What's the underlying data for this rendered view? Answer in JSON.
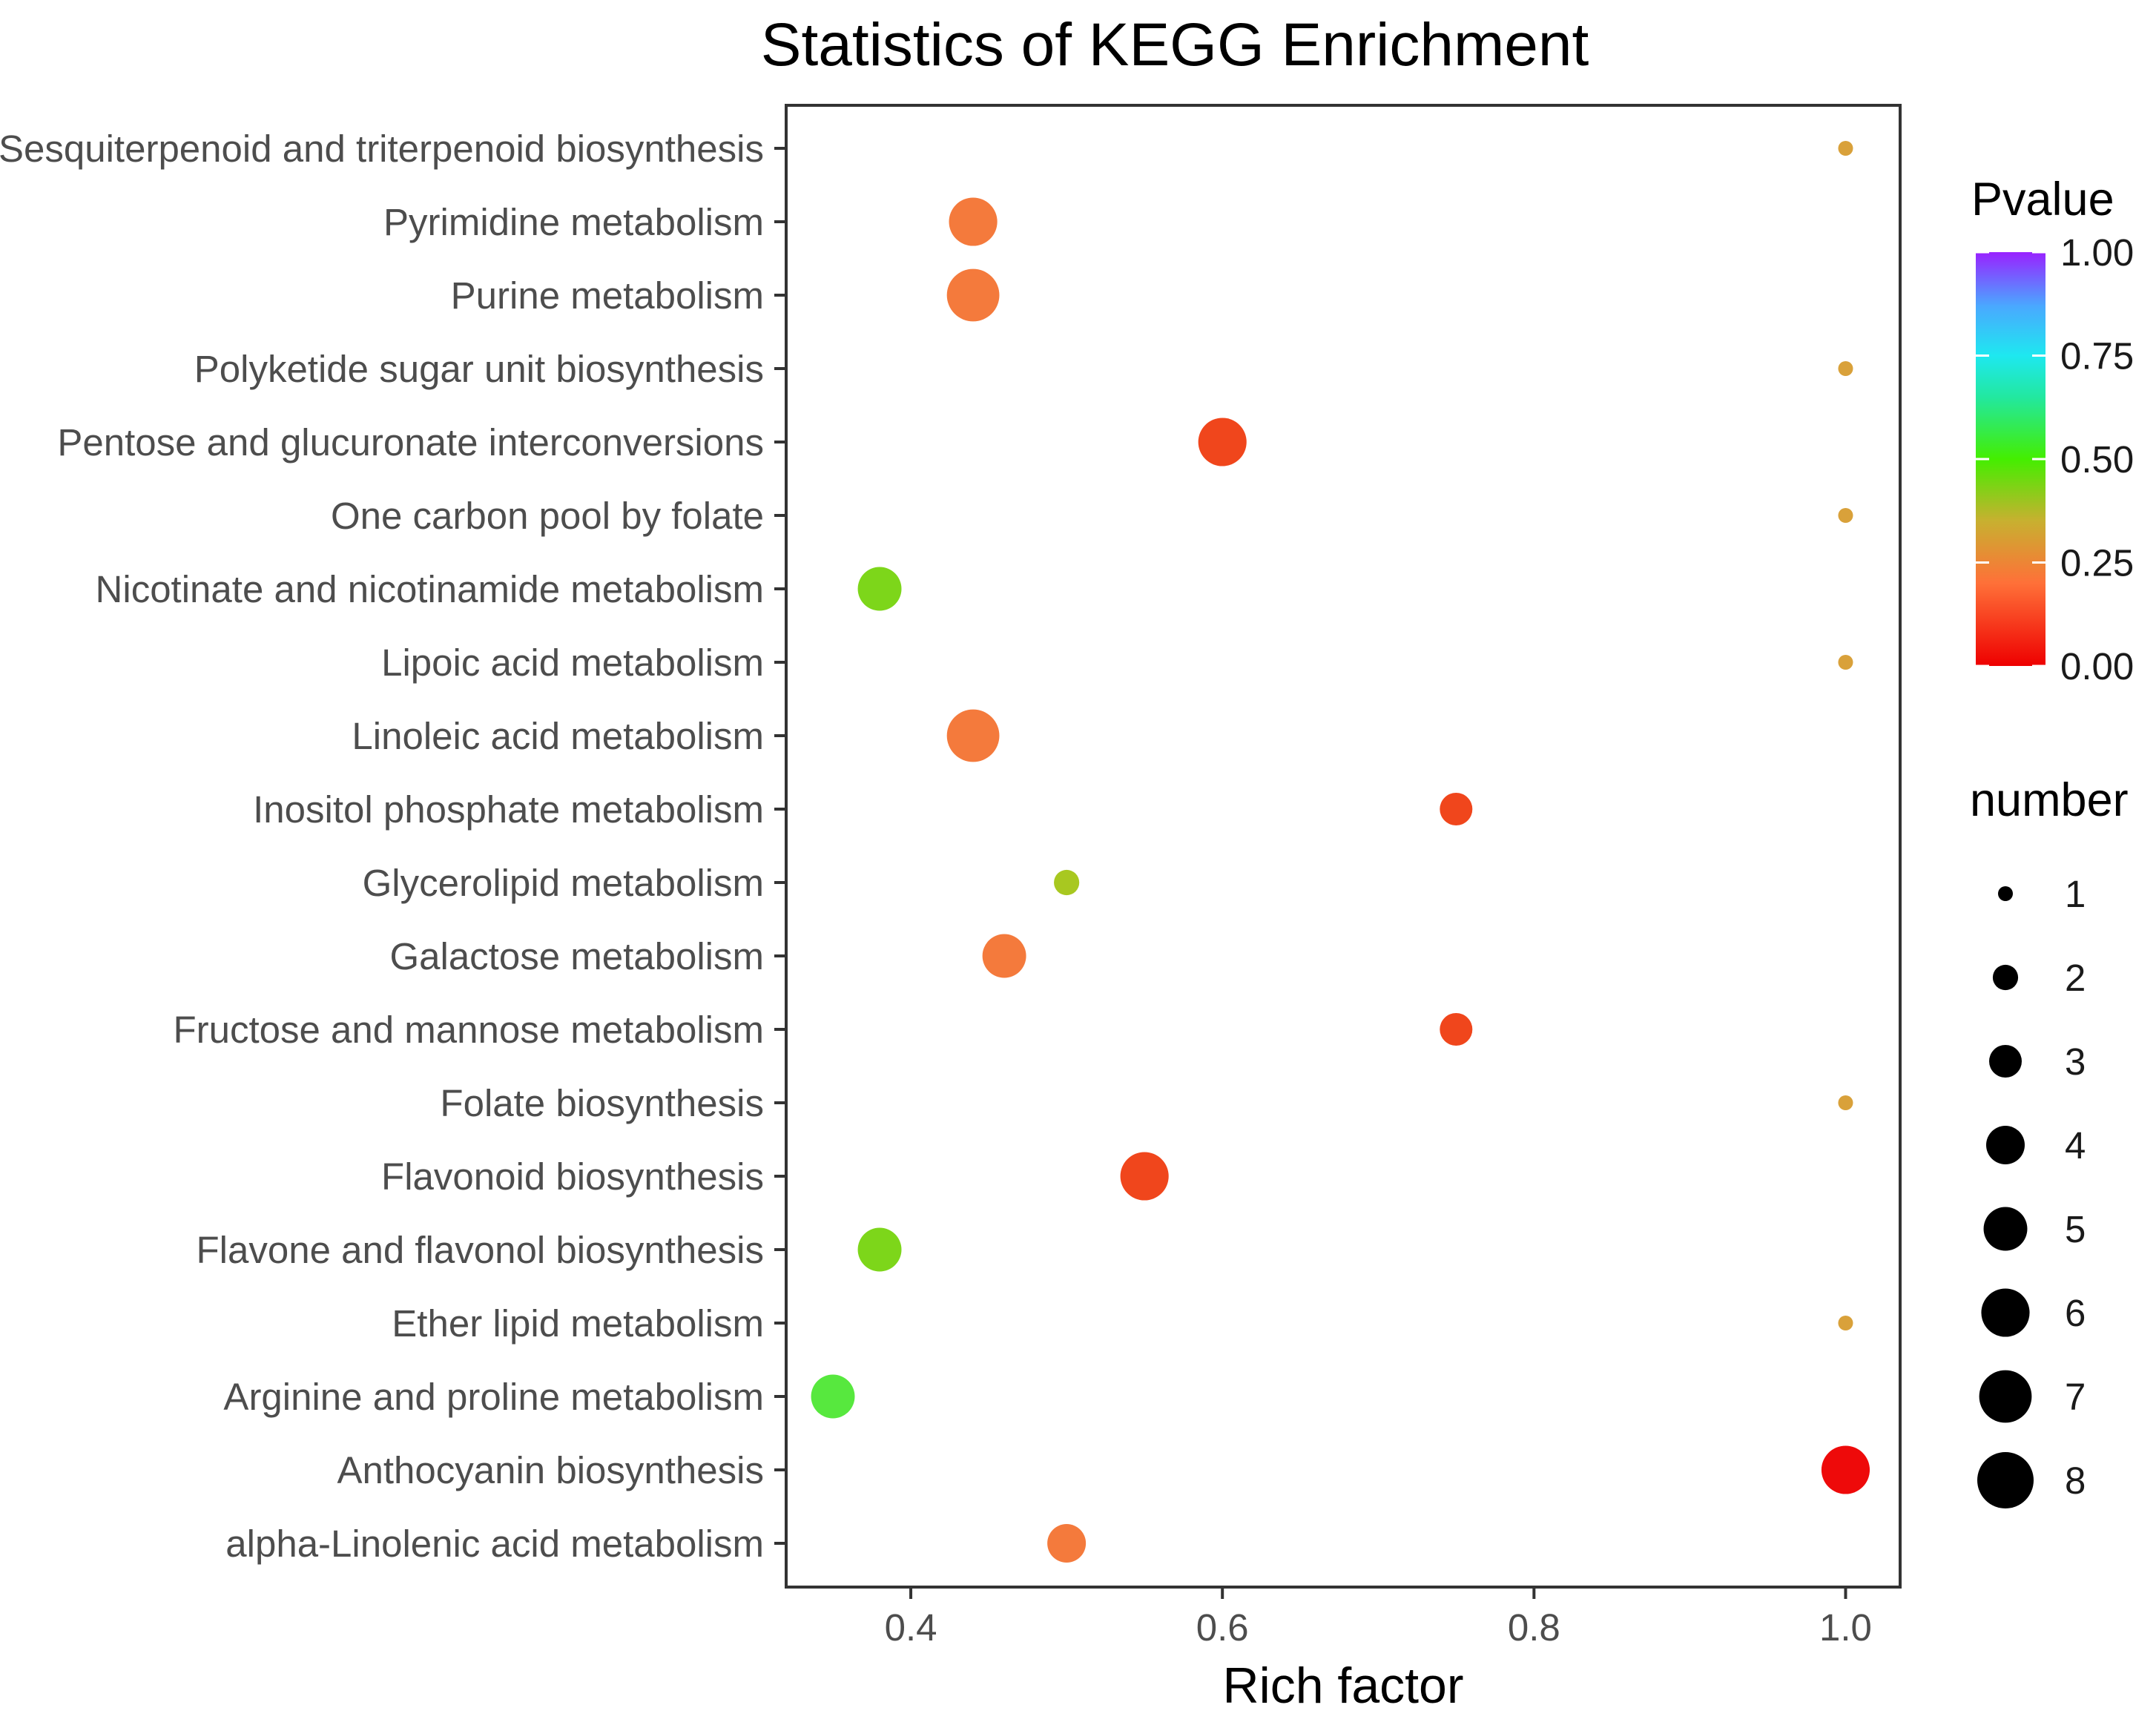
{
  "chart_data": {
    "type": "scatter",
    "title": "Statistics of KEGG Enrichment",
    "xlabel": "Rich factor",
    "ylabel": "",
    "xlim": [
      0.32,
      1.035
    ],
    "xticks": [
      0.4,
      0.6,
      0.8,
      1.0
    ],
    "xtick_labels": [
      "0.4",
      "0.6",
      "0.8",
      "1.0"
    ],
    "grid": false,
    "categories": [
      "Sesquiterpenoid and triterpenoid biosynthesis",
      "Pyrimidine metabolism",
      "Purine metabolism",
      "Polyketide sugar unit biosynthesis",
      "Pentose and glucuronate interconversions",
      "One carbon pool by folate",
      "Nicotinate and nicotinamide metabolism",
      "Lipoic acid metabolism",
      "Linoleic acid metabolism",
      "Inositol phosphate metabolism",
      "Glycerolipid metabolism",
      "Galactose metabolism",
      "Fructose and mannose metabolism",
      "Folate biosynthesis",
      "Flavonoid biosynthesis",
      "Flavone and flavonol biosynthesis",
      "Ether lipid metabolism",
      "Arginine and proline metabolism",
      "Anthocyanin biosynthesis",
      "alpha-Linolenic acid metabolism"
    ],
    "points": [
      {
        "pathway": "Sesquiterpenoid and triterpenoid biosynthesis",
        "rich_factor": 1.0,
        "number": 1,
        "pvalue": 0.27
      },
      {
        "pathway": "Pyrimidine metabolism",
        "rich_factor": 0.44,
        "number": 6,
        "pvalue": 0.2
      },
      {
        "pathway": "Purine metabolism",
        "rich_factor": 0.44,
        "number": 7,
        "pvalue": 0.15
      },
      {
        "pathway": "Polyketide sugar unit biosynthesis",
        "rich_factor": 1.0,
        "number": 1,
        "pvalue": 0.27
      },
      {
        "pathway": "Pentose and glucuronate interconversions",
        "rich_factor": 0.6,
        "number": 6,
        "pvalue": 0.05
      },
      {
        "pathway": "One carbon pool by folate",
        "rich_factor": 1.0,
        "number": 1,
        "pvalue": 0.27
      },
      {
        "pathway": "Nicotinate and nicotinamide metabolism",
        "rich_factor": 0.38,
        "number": 5,
        "pvalue": 0.42
      },
      {
        "pathway": "Lipoic acid metabolism",
        "rich_factor": 1.0,
        "number": 1,
        "pvalue": 0.27
      },
      {
        "pathway": "Linoleic acid metabolism",
        "rich_factor": 0.44,
        "number": 7,
        "pvalue": 0.17
      },
      {
        "pathway": "Inositol phosphate metabolism",
        "rich_factor": 0.75,
        "number": 3,
        "pvalue": 0.07
      },
      {
        "pathway": "Glycerolipid metabolism",
        "rich_factor": 0.5,
        "number": 2,
        "pvalue": 0.37
      },
      {
        "pathway": "Galactose metabolism",
        "rich_factor": 0.46,
        "number": 5,
        "pvalue": 0.15
      },
      {
        "pathway": "Fructose and mannose metabolism",
        "rich_factor": 0.75,
        "number": 3,
        "pvalue": 0.07
      },
      {
        "pathway": "Folate biosynthesis",
        "rich_factor": 1.0,
        "number": 1,
        "pvalue": 0.27
      },
      {
        "pathway": "Flavonoid biosynthesis",
        "rich_factor": 0.55,
        "number": 6,
        "pvalue": 0.06
      },
      {
        "pathway": "Flavone and flavonol biosynthesis",
        "rich_factor": 0.38,
        "number": 5,
        "pvalue": 0.42
      },
      {
        "pathway": "Ether lipid metabolism",
        "rich_factor": 1.0,
        "number": 1,
        "pvalue": 0.27
      },
      {
        "pathway": "Arginine and proline metabolism",
        "rich_factor": 0.35,
        "number": 5,
        "pvalue": 0.5
      },
      {
        "pathway": "Anthocyanin biosynthesis",
        "rich_factor": 1.0,
        "number": 6,
        "pvalue": 0.001
      },
      {
        "pathway": "alpha-Linolenic acid metabolism",
        "rich_factor": 0.5,
        "number": 4,
        "pvalue": 0.2
      }
    ],
    "color_legend": {
      "title": "Pvalue",
      "range": [
        0.0,
        1.0
      ],
      "tick_values": [
        1.0,
        0.75,
        0.5,
        0.25,
        0.0
      ],
      "tick_labels": [
        "1.00",
        "0.75",
        "0.50",
        "0.25",
        "0.00"
      ],
      "gradient_colors": [
        {
          "value": 0.0,
          "color": "#ee0000"
        },
        {
          "value": 0.2,
          "color": "#ff7038"
        },
        {
          "value": 0.35,
          "color": "#c8b030"
        },
        {
          "value": 0.5,
          "color": "#44ee00"
        },
        {
          "value": 0.65,
          "color": "#22e8a0"
        },
        {
          "value": 0.75,
          "color": "#1ee8f0"
        },
        {
          "value": 0.87,
          "color": "#4aa8ff"
        },
        {
          "value": 1.0,
          "color": "#9922ff"
        }
      ]
    },
    "size_legend": {
      "title": "number",
      "values": [
        1,
        2,
        3,
        4,
        5,
        6,
        7,
        8
      ],
      "labels": [
        "1",
        "2",
        "3",
        "4",
        "5",
        "6",
        "7",
        "8"
      ],
      "color": "#000000"
    },
    "point_colors": [
      {
        "pvalue_max": 0.01,
        "color": "#ee0a0a"
      },
      {
        "pvalue_max": 0.1,
        "color": "#f0461c"
      },
      {
        "pvalue_max": 0.22,
        "color": "#f47a3c"
      },
      {
        "pvalue_max": 0.3,
        "color": "#d9a13a"
      },
      {
        "pvalue_max": 0.4,
        "color": "#a8c820"
      },
      {
        "pvalue_max": 0.46,
        "color": "#7dd61a"
      },
      {
        "pvalue_max": 1.0,
        "color": "#57e83e"
      }
    ]
  }
}
